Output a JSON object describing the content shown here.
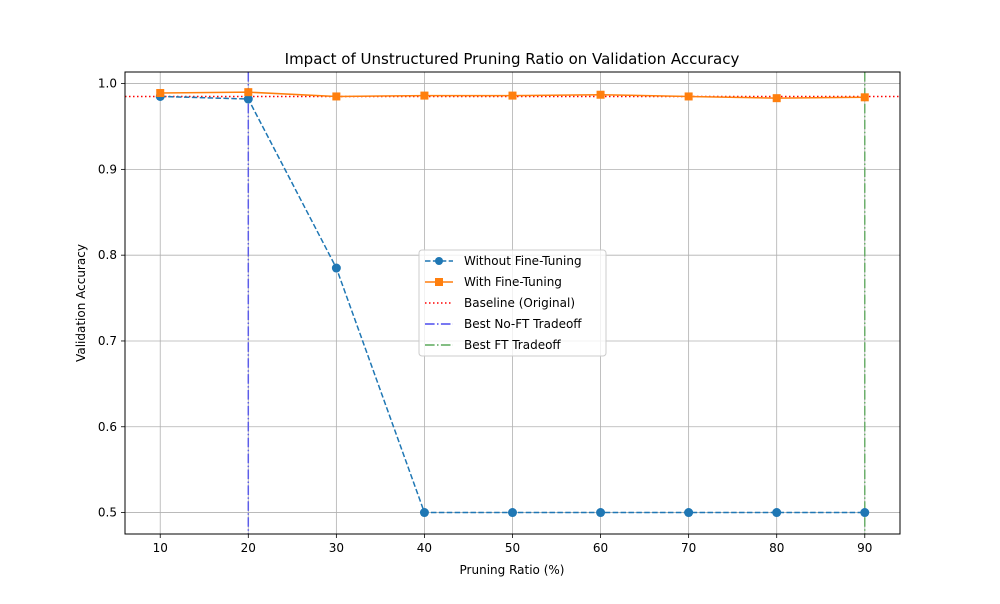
{
  "chart_data": {
    "type": "line",
    "title": "Impact of Unstructured Pruning Ratio on Validation Accuracy",
    "xlabel": "Pruning Ratio (%)",
    "ylabel": "Validation Accuracy",
    "x": [
      10,
      20,
      30,
      40,
      50,
      60,
      70,
      80,
      90
    ],
    "xlim": [
      6,
      94
    ],
    "ylim": [
      0.475,
      1.0135
    ],
    "xticks": [
      10,
      20,
      30,
      40,
      50,
      60,
      70,
      80,
      90
    ],
    "yticks": [
      0.5,
      0.6,
      0.7,
      0.8,
      0.9,
      1.0
    ],
    "ytick_labels": [
      "0.5",
      "0.6",
      "0.7",
      "0.8",
      "0.9",
      "1.0"
    ],
    "grid": true,
    "legend_position": "center",
    "series": [
      {
        "name": "Without Fine-Tuning",
        "values": [
          0.985,
          0.982,
          0.785,
          0.5,
          0.5,
          0.5,
          0.5,
          0.5,
          0.5
        ],
        "color": "#1f77b4",
        "linestyle": "dashed",
        "marker": "circle"
      },
      {
        "name": "With Fine-Tuning",
        "values": [
          0.989,
          0.99,
          0.985,
          0.986,
          0.986,
          0.987,
          0.985,
          0.983,
          0.984
        ],
        "color": "#ff7f0e",
        "linestyle": "solid",
        "marker": "square"
      }
    ],
    "reference_lines": [
      {
        "name": "Baseline (Original)",
        "orientation": "horizontal",
        "value": 0.985,
        "color": "#ff0000",
        "linestyle": "dotted"
      },
      {
        "name": "Best No-FT Tradeoff",
        "orientation": "vertical",
        "value": 20,
        "color": "#4b4bee",
        "linestyle": "dashdot"
      },
      {
        "name": "Best FT Tradeoff",
        "orientation": "vertical",
        "value": 90,
        "color": "#5aa95a",
        "linestyle": "dashdot"
      }
    ]
  }
}
